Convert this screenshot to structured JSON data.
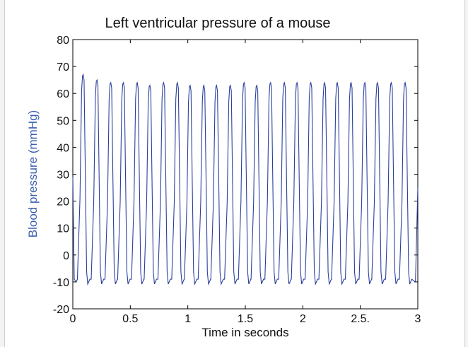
{
  "chart_data": {
    "type": "line",
    "title": "Left ventricular pressure of a mouse",
    "xlabel": "Time in seconds",
    "ylabel": "Blood pressure (mmHg)",
    "xlim": [
      0,
      3
    ],
    "ylim": [
      -20,
      80
    ],
    "x_ticks": [
      0,
      0.5,
      1,
      1.5,
      2,
      2.5,
      3
    ],
    "x_tick_labels": [
      "0",
      "0.5",
      "1",
      "1.5",
      "2",
      "2.5.",
      "3"
    ],
    "y_ticks": [
      -20,
      -10,
      0,
      10,
      20,
      30,
      40,
      50,
      60,
      70,
      80
    ],
    "y_tick_labels": [
      "-20",
      "-10",
      "0",
      "10",
      "20",
      "30",
      "40",
      "50",
      "60",
      "70",
      "80"
    ],
    "grid": false,
    "series": [
      {
        "color": "#2a3f9c",
        "start": {
          "x": 0,
          "y": 29
        },
        "end": {
          "x": 3,
          "y": 25
        },
        "baseline": -10,
        "peak_times": [
          0.09,
          0.21,
          0.33,
          0.44,
          0.56,
          0.67,
          0.79,
          0.91,
          1.02,
          1.14,
          1.25,
          1.37,
          1.49,
          1.6,
          1.72,
          1.84,
          1.95,
          2.07,
          2.19,
          2.3,
          2.42,
          2.54,
          2.65,
          2.77,
          2.89
        ],
        "peak_values": [
          67,
          65,
          64,
          64,
          64,
          63,
          64,
          64,
          63,
          63,
          63,
          63,
          64,
          63,
          64,
          64,
          64,
          64,
          64,
          64,
          64,
          64,
          64,
          64,
          64
        ]
      }
    ]
  }
}
